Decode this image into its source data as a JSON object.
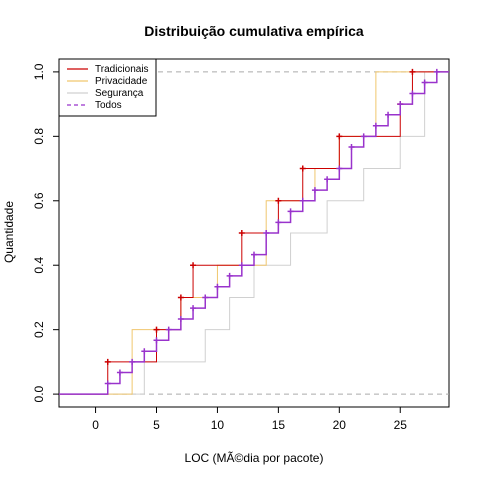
{
  "chart_data": {
    "type": "line",
    "subtype": "step-ecdf",
    "title": "Distribuição cumulativa empírica",
    "xlabel": "LOC (MÃ©dia por pacote)",
    "ylabel": "Quantidade",
    "xlim": [
      -3,
      29
    ],
    "ylim": [
      -0.04,
      1.04
    ],
    "x_ticks": [
      0,
      5,
      10,
      15,
      20,
      25
    ],
    "y_ticks": [
      0.0,
      0.2,
      0.4,
      0.6,
      0.8,
      1.0
    ],
    "x_tick_labels": [
      "0",
      "5",
      "10",
      "15",
      "20",
      "25"
    ],
    "y_tick_labels": [
      "0.0",
      "0.2",
      "0.4",
      "0.6",
      "0.8",
      "1.0"
    ],
    "reference_lines": [
      0,
      1
    ],
    "grid": false,
    "legend": {
      "position": "top-left",
      "entries": [
        "Tradicionais",
        "Privacidade",
        "Segurança",
        "Todos"
      ]
    },
    "series": [
      {
        "name": "Tradicionais",
        "color": "#cc0000",
        "style": "solid",
        "points": true,
        "x": [
          1,
          5,
          7,
          8,
          12,
          15,
          17,
          20,
          25,
          26
        ],
        "y": [
          0.1,
          0.2,
          0.3,
          0.4,
          0.5,
          0.6,
          0.7,
          0.8,
          0.9,
          1.0
        ]
      },
      {
        "name": "Privacidade",
        "color": "#f0c66e",
        "style": "solid",
        "points": false,
        "x": [
          3,
          7,
          10,
          14,
          18,
          20,
          23
        ],
        "y": [
          0.2,
          0.3,
          0.4,
          0.6,
          0.7,
          0.8,
          1.0
        ]
      },
      {
        "name": "Segurança",
        "color": "#d0d0d0",
        "style": "solid",
        "points": false,
        "x": [
          4,
          9,
          11,
          13,
          16,
          19,
          22,
          25,
          27
        ],
        "y": [
          0.1,
          0.2,
          0.3,
          0.4,
          0.5,
          0.6,
          0.7,
          0.8,
          1.0
        ]
      },
      {
        "name": "Todos",
        "color": "#9933cc",
        "style": "solid",
        "points": true,
        "x": [
          1,
          2,
          3,
          4,
          5,
          6,
          7,
          8,
          9,
          10,
          11,
          12,
          13,
          14,
          15,
          16,
          17,
          18,
          19,
          20,
          21,
          22,
          23,
          24,
          25,
          26,
          27,
          28
        ],
        "y": [
          0.033,
          0.067,
          0.1,
          0.133,
          0.167,
          0.2,
          0.233,
          0.267,
          0.3,
          0.333,
          0.367,
          0.4,
          0.433,
          0.5,
          0.533,
          0.567,
          0.6,
          0.633,
          0.667,
          0.7,
          0.767,
          0.8,
          0.833,
          0.867,
          0.9,
          0.933,
          0.967,
          1.0
        ]
      }
    ]
  }
}
